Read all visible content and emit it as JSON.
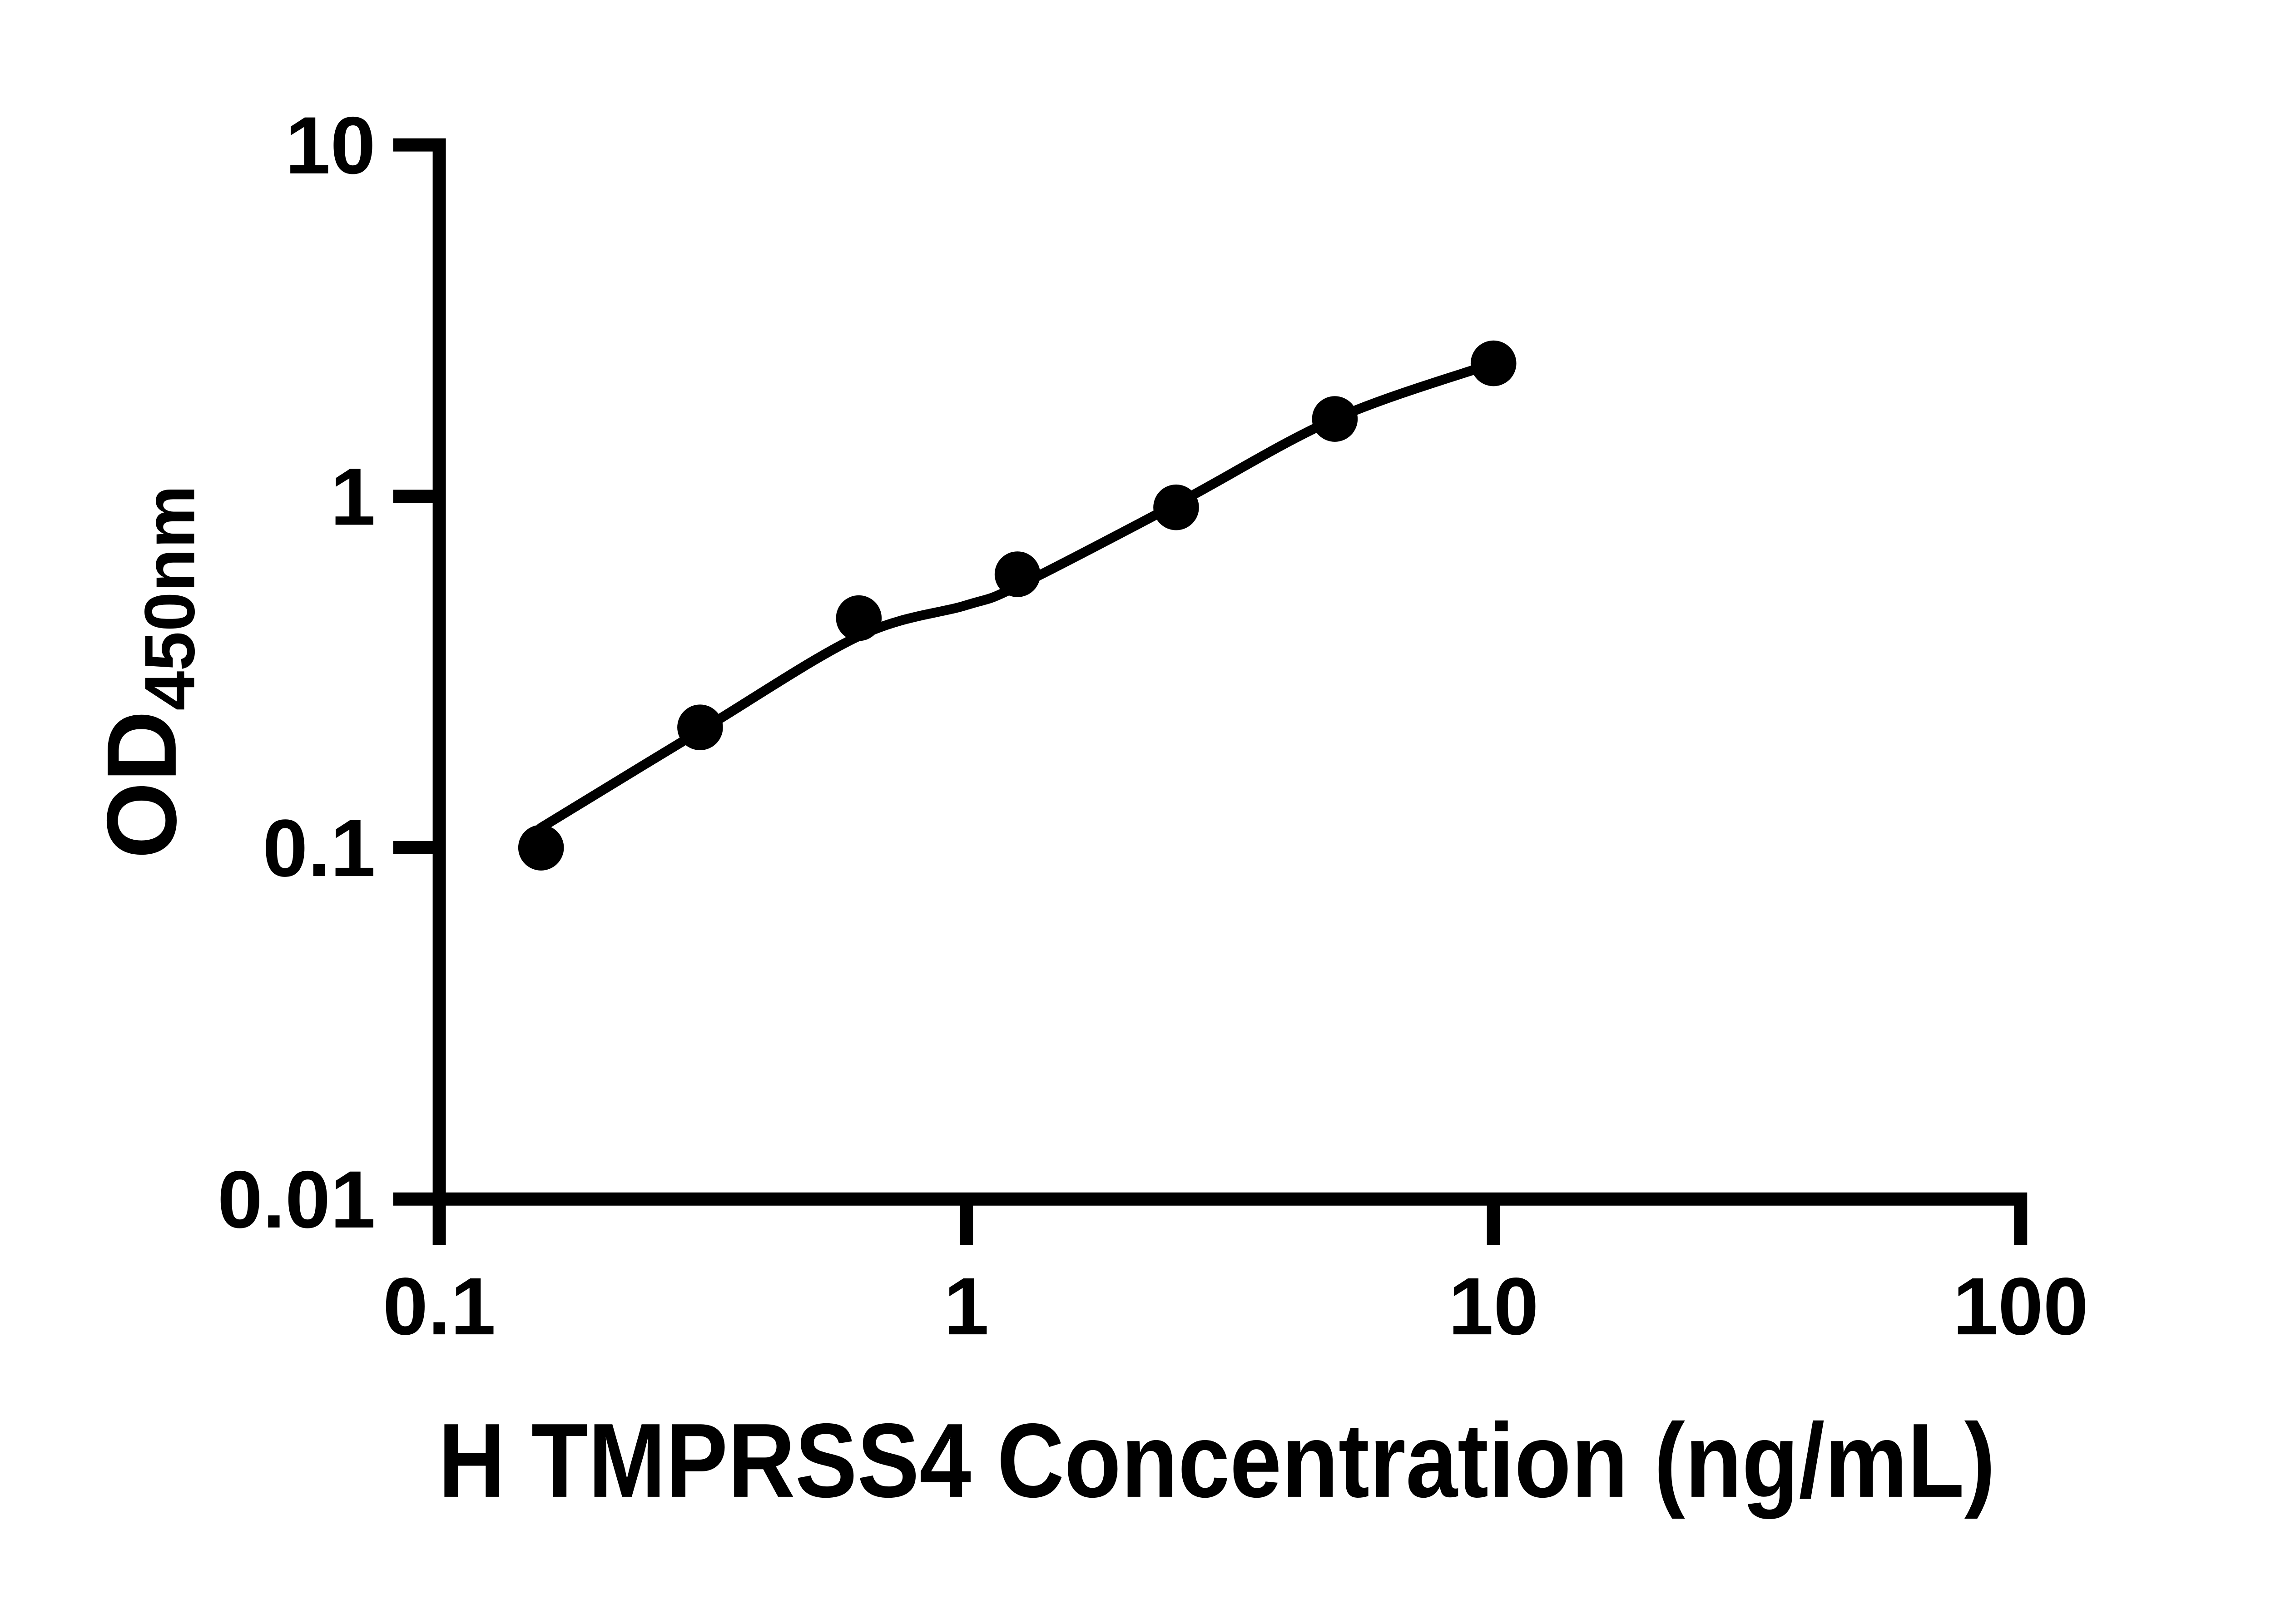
{
  "figure": {
    "background_color": "#ffffff",
    "ink_color": "#000000"
  },
  "chart_data": {
    "type": "scatter",
    "title": "",
    "xlabel": "H TMPRSS4 Concentration (ng/mL)",
    "ylabel_main": "OD",
    "ylabel_subscript": "450nm",
    "x_scale": "log10",
    "y_scale": "log10",
    "xlim": [
      0.1,
      100
    ],
    "ylim": [
      0.01,
      10
    ],
    "grid": false,
    "legend_position": "none",
    "x_ticks": [
      {
        "value": 0.1,
        "label": "0.1"
      },
      {
        "value": 1,
        "label": "1"
      },
      {
        "value": 10,
        "label": "10"
      },
      {
        "value": 100,
        "label": "100"
      }
    ],
    "y_ticks": [
      {
        "value": 0.01,
        "label": "0.01"
      },
      {
        "value": 0.1,
        "label": "0.1"
      },
      {
        "value": 1,
        "label": "1"
      },
      {
        "value": 10,
        "label": "10"
      }
    ],
    "series": [
      {
        "name": "standard-points",
        "marker": "filled-circle",
        "color": "#000000",
        "points": [
          {
            "x": 0.156,
            "y": 0.1
          },
          {
            "x": 0.3125,
            "y": 0.22
          },
          {
            "x": 0.625,
            "y": 0.45
          },
          {
            "x": 1.25,
            "y": 0.6
          },
          {
            "x": 2.5,
            "y": 0.93
          },
          {
            "x": 5,
            "y": 1.66
          },
          {
            "x": 10,
            "y": 2.39
          }
        ]
      }
    ],
    "fit_curve": {
      "name": "fitted-standard-curve",
      "color": "#000000",
      "points": [
        {
          "x": 0.156,
          "y": 0.114
        },
        {
          "x": 0.3125,
          "y": 0.215
        },
        {
          "x": 0.625,
          "y": 0.4
        },
        {
          "x": 1.0,
          "y": 0.49
        },
        {
          "x": 1.25,
          "y": 0.555
        },
        {
          "x": 2.5,
          "y": 0.95
        },
        {
          "x": 5,
          "y": 1.66
        },
        {
          "x": 10,
          "y": 2.39
        }
      ]
    }
  }
}
